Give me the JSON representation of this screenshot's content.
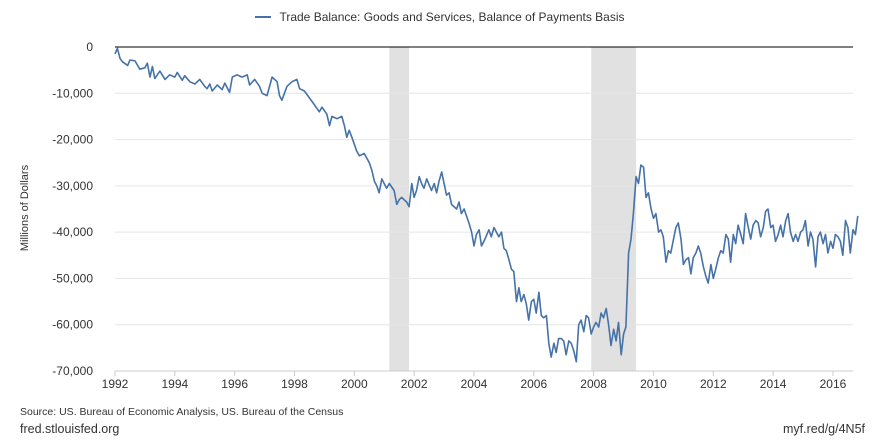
{
  "legend": {
    "label": "Trade Balance: Goods and Services, Balance of Payments Basis",
    "color": "#4572a7"
  },
  "source_text": "Source: US. Bureau of Economic Analysis, US. Bureau of the Census",
  "site_text": "fred.stlouisfed.org",
  "short_link": "myf.red/g/4N5f",
  "colors": {
    "line": "#4572a7",
    "recession": "#e1e1e1",
    "grid": "#e6e6e6",
    "axis": "#000000"
  },
  "chart_data": {
    "type": "line",
    "title": "",
    "xlabel": "",
    "ylabel": "Millions of Dollars",
    "xlim": [
      1992.0,
      2016.67
    ],
    "ylim": [
      -70000,
      0
    ],
    "x_ticks": [
      "1992",
      "1994",
      "1996",
      "1998",
      "2000",
      "2002",
      "2004",
      "2006",
      "2008",
      "2010",
      "2012",
      "2014",
      "2016"
    ],
    "y_ticks": [
      "0",
      "-10,000",
      "-20,000",
      "-30,000",
      "-40,000",
      "-50,000",
      "-60,000",
      "-70,000"
    ],
    "grid": "horizontal",
    "legend_position": "top-center",
    "recessions": [
      {
        "start": 2001.17,
        "end": 2001.83
      },
      {
        "start": 2007.92,
        "end": 2009.42
      }
    ],
    "series": [
      {
        "name": "Trade Balance: Goods and Services, Balance of Payments Basis",
        "points": [
          [
            1992.0,
            -1500
          ],
          [
            1992.08,
            -300
          ],
          [
            1992.17,
            -2500
          ],
          [
            1992.25,
            -3200
          ],
          [
            1992.42,
            -4000
          ],
          [
            1992.5,
            -2800
          ],
          [
            1992.67,
            -3000
          ],
          [
            1992.83,
            -4800
          ],
          [
            1993.0,
            -4500
          ],
          [
            1993.08,
            -3500
          ],
          [
            1993.17,
            -6500
          ],
          [
            1993.25,
            -4200
          ],
          [
            1993.33,
            -6800
          ],
          [
            1993.5,
            -5200
          ],
          [
            1993.67,
            -7000
          ],
          [
            1993.83,
            -6000
          ],
          [
            1994.0,
            -6500
          ],
          [
            1994.08,
            -5500
          ],
          [
            1994.25,
            -7200
          ],
          [
            1994.33,
            -6200
          ],
          [
            1994.5,
            -7500
          ],
          [
            1994.67,
            -8000
          ],
          [
            1994.83,
            -7000
          ],
          [
            1995.0,
            -8500
          ],
          [
            1995.08,
            -9000
          ],
          [
            1995.17,
            -8000
          ],
          [
            1995.25,
            -9500
          ],
          [
            1995.42,
            -8200
          ],
          [
            1995.58,
            -9200
          ],
          [
            1995.67,
            -7800
          ],
          [
            1995.83,
            -9800
          ],
          [
            1995.92,
            -6500
          ],
          [
            1996.08,
            -6000
          ],
          [
            1996.25,
            -6500
          ],
          [
            1996.42,
            -6000
          ],
          [
            1996.5,
            -8200
          ],
          [
            1996.67,
            -7000
          ],
          [
            1996.83,
            -8500
          ],
          [
            1996.92,
            -10000
          ],
          [
            1997.08,
            -10500
          ],
          [
            1997.25,
            -6500
          ],
          [
            1997.42,
            -7500
          ],
          [
            1997.5,
            -10500
          ],
          [
            1997.58,
            -11500
          ],
          [
            1997.75,
            -8500
          ],
          [
            1997.92,
            -7500
          ],
          [
            1998.08,
            -7000
          ],
          [
            1998.17,
            -9000
          ],
          [
            1998.33,
            -9500
          ],
          [
            1998.5,
            -11000
          ],
          [
            1998.67,
            -12500
          ],
          [
            1998.83,
            -14000
          ],
          [
            1998.92,
            -13000
          ],
          [
            1999.08,
            -14500
          ],
          [
            1999.17,
            -17000
          ],
          [
            1999.25,
            -15000
          ],
          [
            1999.42,
            -15500
          ],
          [
            1999.58,
            -15000
          ],
          [
            1999.67,
            -17000
          ],
          [
            1999.75,
            -19500
          ],
          [
            1999.83,
            -18000
          ],
          [
            1999.92,
            -19500
          ],
          [
            2000.08,
            -22500
          ],
          [
            2000.17,
            -23500
          ],
          [
            2000.33,
            -23000
          ],
          [
            2000.5,
            -25000
          ],
          [
            2000.58,
            -26500
          ],
          [
            2000.67,
            -29000
          ],
          [
            2000.75,
            -30000
          ],
          [
            2000.83,
            -31500
          ],
          [
            2000.92,
            -28500
          ],
          [
            2001.08,
            -30500
          ],
          [
            2001.17,
            -29500
          ],
          [
            2001.33,
            -31000
          ],
          [
            2001.42,
            -34000
          ],
          [
            2001.5,
            -33000
          ],
          [
            2001.58,
            -32500
          ],
          [
            2001.75,
            -33500
          ],
          [
            2001.83,
            -34500
          ],
          [
            2001.92,
            -29500
          ],
          [
            2002.0,
            -32500
          ],
          [
            2002.08,
            -31000
          ],
          [
            2002.17,
            -28000
          ],
          [
            2002.25,
            -29500
          ],
          [
            2002.33,
            -30500
          ],
          [
            2002.42,
            -28500
          ],
          [
            2002.58,
            -31000
          ],
          [
            2002.67,
            -29500
          ],
          [
            2002.75,
            -31500
          ],
          [
            2002.83,
            -29000
          ],
          [
            2002.92,
            -27000
          ],
          [
            2003.0,
            -29500
          ],
          [
            2003.08,
            -32000
          ],
          [
            2003.17,
            -31500
          ],
          [
            2003.25,
            -34000
          ],
          [
            2003.42,
            -35000
          ],
          [
            2003.5,
            -33500
          ],
          [
            2003.58,
            -36000
          ],
          [
            2003.67,
            -35000
          ],
          [
            2003.83,
            -38000
          ],
          [
            2003.92,
            -40000
          ],
          [
            2004.0,
            -43000
          ],
          [
            2004.08,
            -40500
          ],
          [
            2004.17,
            -39500
          ],
          [
            2004.25,
            -43000
          ],
          [
            2004.33,
            -42000
          ],
          [
            2004.5,
            -39500
          ],
          [
            2004.58,
            -41000
          ],
          [
            2004.67,
            -39000
          ],
          [
            2004.83,
            -41000
          ],
          [
            2004.92,
            -40000
          ],
          [
            2005.0,
            -43500
          ],
          [
            2005.08,
            -44000
          ],
          [
            2005.17,
            -46000
          ],
          [
            2005.25,
            -48000
          ],
          [
            2005.33,
            -48500
          ],
          [
            2005.42,
            -55000
          ],
          [
            2005.5,
            -52000
          ],
          [
            2005.58,
            -55000
          ],
          [
            2005.67,
            -53500
          ],
          [
            2005.75,
            -55500
          ],
          [
            2005.83,
            -59000
          ],
          [
            2005.92,
            -55000
          ],
          [
            2006.0,
            -54500
          ],
          [
            2006.08,
            -57500
          ],
          [
            2006.17,
            -53000
          ],
          [
            2006.25,
            -58000
          ],
          [
            2006.33,
            -58500
          ],
          [
            2006.42,
            -58000
          ],
          [
            2006.5,
            -64000
          ],
          [
            2006.58,
            -67000
          ],
          [
            2006.67,
            -64000
          ],
          [
            2006.75,
            -66000
          ],
          [
            2006.83,
            -63000
          ],
          [
            2006.92,
            -63000
          ],
          [
            2007.0,
            -63500
          ],
          [
            2007.08,
            -66500
          ],
          [
            2007.17,
            -63500
          ],
          [
            2007.25,
            -64000
          ],
          [
            2007.33,
            -65500
          ],
          [
            2007.42,
            -68000
          ],
          [
            2007.5,
            -60000
          ],
          [
            2007.58,
            -59000
          ],
          [
            2007.67,
            -61500
          ],
          [
            2007.75,
            -58000
          ],
          [
            2007.83,
            -58500
          ],
          [
            2007.92,
            -62000
          ],
          [
            2008.0,
            -60500
          ],
          [
            2008.08,
            -59500
          ],
          [
            2008.17,
            -60500
          ],
          [
            2008.25,
            -57500
          ],
          [
            2008.33,
            -58500
          ],
          [
            2008.42,
            -56500
          ],
          [
            2008.5,
            -60000
          ],
          [
            2008.58,
            -64500
          ],
          [
            2008.67,
            -61000
          ],
          [
            2008.75,
            -63500
          ],
          [
            2008.83,
            -59500
          ],
          [
            2008.92,
            -66500
          ],
          [
            2009.0,
            -62000
          ],
          [
            2009.08,
            -60500
          ],
          [
            2009.17,
            -44500
          ],
          [
            2009.25,
            -41500
          ],
          [
            2009.33,
            -36000
          ],
          [
            2009.42,
            -28000
          ],
          [
            2009.5,
            -29500
          ],
          [
            2009.58,
            -25500
          ],
          [
            2009.67,
            -26000
          ],
          [
            2009.75,
            -32500
          ],
          [
            2009.83,
            -31500
          ],
          [
            2009.92,
            -35000
          ],
          [
            2010.0,
            -37000
          ],
          [
            2010.08,
            -36000
          ],
          [
            2010.17,
            -40000
          ],
          [
            2010.25,
            -39500
          ],
          [
            2010.33,
            -41000
          ],
          [
            2010.42,
            -46500
          ],
          [
            2010.5,
            -44000
          ],
          [
            2010.58,
            -44500
          ],
          [
            2010.67,
            -41500
          ],
          [
            2010.75,
            -39000
          ],
          [
            2010.83,
            -38000
          ],
          [
            2010.92,
            -41500
          ],
          [
            2011.0,
            -47000
          ],
          [
            2011.08,
            -46000
          ],
          [
            2011.17,
            -45500
          ],
          [
            2011.25,
            -49000
          ],
          [
            2011.33,
            -45500
          ],
          [
            2011.42,
            -44500
          ],
          [
            2011.5,
            -43000
          ],
          [
            2011.58,
            -44500
          ],
          [
            2011.67,
            -47500
          ],
          [
            2011.75,
            -49500
          ],
          [
            2011.83,
            -51000
          ],
          [
            2011.92,
            -47000
          ],
          [
            2012.0,
            -50000
          ],
          [
            2012.08,
            -48000
          ],
          [
            2012.17,
            -45500
          ],
          [
            2012.25,
            -44000
          ],
          [
            2012.33,
            -44500
          ],
          [
            2012.42,
            -40500
          ],
          [
            2012.5,
            -41500
          ],
          [
            2012.58,
            -46500
          ],
          [
            2012.67,
            -40500
          ],
          [
            2012.75,
            -42500
          ],
          [
            2012.83,
            -38500
          ],
          [
            2012.92,
            -40500
          ],
          [
            2013.0,
            -42500
          ],
          [
            2013.08,
            -36000
          ],
          [
            2013.17,
            -39000
          ],
          [
            2013.25,
            -41500
          ],
          [
            2013.33,
            -38500
          ],
          [
            2013.42,
            -37500
          ],
          [
            2013.5,
            -38000
          ],
          [
            2013.58,
            -41000
          ],
          [
            2013.67,
            -39000
          ],
          [
            2013.75,
            -35500
          ],
          [
            2013.83,
            -35000
          ],
          [
            2013.92,
            -39000
          ],
          [
            2014.0,
            -38500
          ],
          [
            2014.08,
            -42000
          ],
          [
            2014.17,
            -40500
          ],
          [
            2014.25,
            -38500
          ],
          [
            2014.33,
            -41000
          ],
          [
            2014.42,
            -37500
          ],
          [
            2014.5,
            -36000
          ],
          [
            2014.58,
            -40000
          ],
          [
            2014.67,
            -42000
          ],
          [
            2014.75,
            -40500
          ],
          [
            2014.83,
            -42000
          ],
          [
            2014.92,
            -40000
          ],
          [
            2015.0,
            -39500
          ],
          [
            2015.08,
            -37500
          ],
          [
            2015.17,
            -43000
          ],
          [
            2015.25,
            -40000
          ],
          [
            2015.33,
            -41500
          ],
          [
            2015.42,
            -47500
          ],
          [
            2015.5,
            -41000
          ],
          [
            2015.58,
            -40000
          ],
          [
            2015.67,
            -42500
          ],
          [
            2015.75,
            -40500
          ],
          [
            2015.83,
            -44500
          ],
          [
            2015.92,
            -42000
          ],
          [
            2016.0,
            -43500
          ],
          [
            2016.08,
            -40500
          ],
          [
            2016.17,
            -41000
          ],
          [
            2016.25,
            -42000
          ],
          [
            2016.33,
            -45000
          ],
          [
            2016.42,
            -37500
          ],
          [
            2016.5,
            -39000
          ],
          [
            2016.58,
            -44500
          ],
          [
            2016.67,
            -39500
          ],
          [
            2016.75,
            -40500
          ],
          [
            2016.83,
            -36500
          ]
        ]
      }
    ]
  }
}
